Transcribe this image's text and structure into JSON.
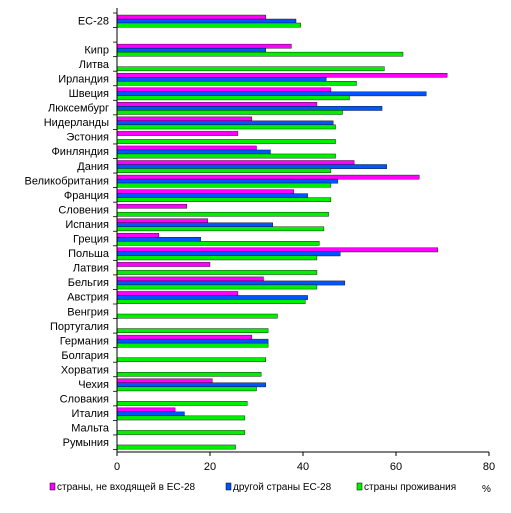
{
  "chart_data": {
    "type": "bar",
    "orientation": "horizontal",
    "categories": [
      "EC-28",
      "",
      "Кипр",
      "Литва",
      "Ирландия",
      "Швеция",
      "Люксембург",
      "Нидерланды",
      "Эстония",
      "Финляндия",
      "Дания",
      "Великобритания",
      "Франция",
      "Словения",
      "Испания",
      "Греция",
      "Польша",
      "Латвия",
      "Бельгия",
      "Австрия",
      "Венгрия",
      "Португалия",
      "Германия",
      "Болгария",
      "Хорватия",
      "Чехия",
      "Словакия",
      "Италия",
      "Мальта",
      "Румыния"
    ],
    "series": [
      {
        "name": "страны, не входящей в ЕС-28",
        "color": "#ff00ff",
        "values": [
          32,
          null,
          37.5,
          null,
          71,
          46,
          43,
          29,
          26,
          30,
          51,
          65,
          38,
          15,
          19.5,
          9,
          69,
          20,
          31.5,
          26,
          null,
          null,
          29,
          null,
          null,
          20.5,
          null,
          12.5,
          null,
          null
        ]
      },
      {
        "name": "другой страны ЕС-28",
        "color": "#0055ff",
        "values": [
          38.5,
          null,
          32,
          null,
          45,
          66.5,
          57,
          46.5,
          null,
          33,
          58,
          47.5,
          41,
          null,
          33.5,
          18,
          48,
          null,
          49,
          41,
          null,
          null,
          32.5,
          null,
          null,
          32,
          null,
          14.5,
          null,
          null
        ]
      },
      {
        "name": "страны проживания",
        "color": "#00ee00",
        "values": [
          39.5,
          null,
          61.5,
          57.5,
          51.5,
          50,
          48.5,
          47,
          47,
          47,
          46,
          46,
          46,
          45.5,
          44.5,
          43.5,
          43,
          43,
          43,
          40.5,
          34.5,
          32.5,
          32.5,
          32,
          31,
          30,
          28,
          27.5,
          27.5,
          25.5
        ]
      }
    ],
    "xlim": [
      0,
      80
    ],
    "xticks": [
      0,
      20,
      40,
      60,
      80
    ],
    "xunit": "%",
    "grid": false,
    "legend": "bottom"
  }
}
